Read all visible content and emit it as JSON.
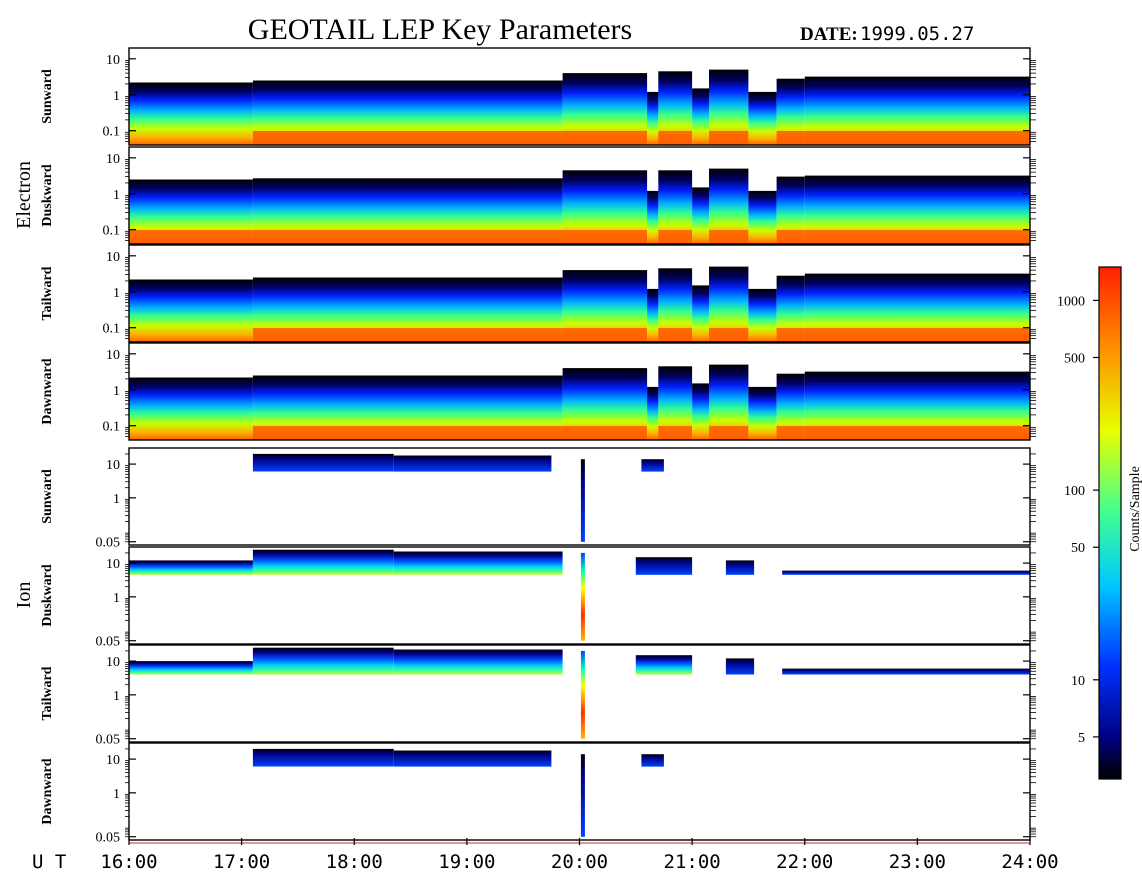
{
  "title": "GEOTAIL LEP Key Parameters",
  "date_label": "DATE:",
  "date_value": "1999.05.27",
  "x_axis": {
    "label": "U T",
    "ticks": [
      "16:00",
      "17:00",
      "18:00",
      "19:00",
      "20:00",
      "21:00",
      "22:00",
      "23:00",
      "24:00"
    ]
  },
  "groups": [
    {
      "name": "Electron",
      "panels": [
        "Sunward",
        "Duskward",
        "Tailward",
        "Dawnward"
      ]
    },
    {
      "name": "Ion",
      "panels": [
        "Sunward",
        "Duskward",
        "Tailward",
        "Dawnward"
      ]
    }
  ],
  "colorbar": {
    "label": "Counts/Sample",
    "ticks": [
      "1000",
      "500",
      "100",
      "50",
      "10",
      "5"
    ]
  },
  "chart_data": {
    "type": "heatmap",
    "title": "GEOTAIL LEP Key Parameters",
    "date": "1999.05.27",
    "x_range_ut_hours": [
      16,
      24
    ],
    "colorscale": {
      "label": "Counts/Sample",
      "scale": "log",
      "range": [
        3,
        1500
      ],
      "colors": [
        "#000000",
        "#000080",
        "#0030ff",
        "#00c8ff",
        "#40ff90",
        "#e8ff00",
        "#ff9000",
        "#ff3000"
      ]
    },
    "panels": [
      {
        "species": "Electron",
        "direction": "Sunward",
        "y_scale": "log",
        "y_ticks": [
          "10",
          "1",
          "0.1"
        ],
        "y_range": [
          0.04,
          20
        ],
        "segments": [
          {
            "t": [
              16.0,
              17.1
            ],
            "top": 2.2,
            "red_bottom": false
          },
          {
            "t": [
              17.1,
              19.85
            ],
            "top": 2.5,
            "red_bottom": true
          },
          {
            "t": [
              19.85,
              20.6
            ],
            "top": 4.0,
            "red_bottom": true
          },
          {
            "t": [
              20.6,
              20.7
            ],
            "top": 1.2,
            "red_bottom": false
          },
          {
            "t": [
              20.7,
              21.0
            ],
            "top": 4.5,
            "red_bottom": true
          },
          {
            "t": [
              21.0,
              21.15
            ],
            "top": 1.5,
            "red_bottom": false
          },
          {
            "t": [
              21.15,
              21.5
            ],
            "top": 5.0,
            "red_bottom": true
          },
          {
            "t": [
              21.5,
              21.75
            ],
            "top": 1.2,
            "red_bottom": false
          },
          {
            "t": [
              21.75,
              22.0
            ],
            "top": 2.8,
            "red_bottom": true
          },
          {
            "t": [
              22.0,
              24.0
            ],
            "top": 3.2,
            "red_bottom": true
          }
        ]
      },
      {
        "species": "Electron",
        "direction": "Duskward",
        "y_scale": "log",
        "y_ticks": [
          "10",
          "1",
          "0.1"
        ],
        "y_range": [
          0.04,
          20
        ],
        "segments": [
          {
            "t": [
              16.0,
              17.1
            ],
            "top": 2.5,
            "red_bottom": true
          },
          {
            "t": [
              17.1,
              19.85
            ],
            "top": 2.7,
            "red_bottom": true
          },
          {
            "t": [
              19.85,
              20.6
            ],
            "top": 4.5,
            "red_bottom": true
          },
          {
            "t": [
              20.6,
              20.7
            ],
            "top": 1.2,
            "red_bottom": false
          },
          {
            "t": [
              20.7,
              21.0
            ],
            "top": 4.5,
            "red_bottom": true
          },
          {
            "t": [
              21.0,
              21.15
            ],
            "top": 1.5,
            "red_bottom": false
          },
          {
            "t": [
              21.15,
              21.5
            ],
            "top": 5.0,
            "red_bottom": true
          },
          {
            "t": [
              21.5,
              21.75
            ],
            "top": 1.2,
            "red_bottom": false
          },
          {
            "t": [
              21.75,
              22.0
            ],
            "top": 3.0,
            "red_bottom": true
          },
          {
            "t": [
              22.0,
              24.0
            ],
            "top": 3.2,
            "red_bottom": true
          }
        ]
      },
      {
        "species": "Electron",
        "direction": "Tailward",
        "y_scale": "log",
        "y_ticks": [
          "10",
          "1",
          "0.1"
        ],
        "y_range": [
          0.04,
          20
        ],
        "segments": [
          {
            "t": [
              16.0,
              17.1
            ],
            "top": 2.2,
            "red_bottom": false
          },
          {
            "t": [
              17.1,
              19.85
            ],
            "top": 2.5,
            "red_bottom": true
          },
          {
            "t": [
              19.85,
              20.6
            ],
            "top": 4.0,
            "red_bottom": true
          },
          {
            "t": [
              20.6,
              20.7
            ],
            "top": 1.2,
            "red_bottom": false
          },
          {
            "t": [
              20.7,
              21.0
            ],
            "top": 4.5,
            "red_bottom": true
          },
          {
            "t": [
              21.0,
              21.15
            ],
            "top": 1.5,
            "red_bottom": false
          },
          {
            "t": [
              21.15,
              21.5
            ],
            "top": 5.0,
            "red_bottom": true
          },
          {
            "t": [
              21.5,
              21.75
            ],
            "top": 1.2,
            "red_bottom": false
          },
          {
            "t": [
              21.75,
              22.0
            ],
            "top": 2.8,
            "red_bottom": true
          },
          {
            "t": [
              22.0,
              24.0
            ],
            "top": 3.2,
            "red_bottom": true
          }
        ]
      },
      {
        "species": "Electron",
        "direction": "Dawnward",
        "y_scale": "log",
        "y_ticks": [
          "10",
          "1",
          "0.1"
        ],
        "y_range": [
          0.04,
          20
        ],
        "segments": [
          {
            "t": [
              16.0,
              17.1
            ],
            "top": 2.2,
            "red_bottom": false
          },
          {
            "t": [
              17.1,
              19.85
            ],
            "top": 2.5,
            "red_bottom": true
          },
          {
            "t": [
              19.85,
              20.6
            ],
            "top": 4.0,
            "red_bottom": true
          },
          {
            "t": [
              20.6,
              20.7
            ],
            "top": 1.2,
            "red_bottom": false
          },
          {
            "t": [
              20.7,
              21.0
            ],
            "top": 4.5,
            "red_bottom": true
          },
          {
            "t": [
              21.0,
              21.15
            ],
            "top": 1.5,
            "red_bottom": false
          },
          {
            "t": [
              21.15,
              21.5
            ],
            "top": 5.0,
            "red_bottom": true
          },
          {
            "t": [
              21.5,
              21.75
            ],
            "top": 1.2,
            "red_bottom": false
          },
          {
            "t": [
              21.75,
              22.0
            ],
            "top": 2.8,
            "red_bottom": true
          },
          {
            "t": [
              22.0,
              24.0
            ],
            "top": 3.2,
            "red_bottom": true
          }
        ]
      },
      {
        "species": "Ion",
        "direction": "Sunward",
        "y_scale": "log",
        "y_ticks": [
          "10",
          "1",
          "0.05"
        ],
        "y_range": [
          0.04,
          30
        ],
        "segments": [
          {
            "t": [
              17.1,
              18.35
            ],
            "top": 20,
            "bottom": 6.0,
            "level": "blue"
          },
          {
            "t": [
              18.35,
              19.75
            ],
            "top": 18,
            "bottom": 6.0,
            "level": "blue"
          },
          {
            "t": [
              20.55,
              20.75
            ],
            "top": 14,
            "bottom": 6.0,
            "level": "blue"
          }
        ],
        "spike": {
          "t": 20.03,
          "bottom": 0.05,
          "top": 14,
          "level": "blue"
        }
      },
      {
        "species": "Ion",
        "direction": "Duskward",
        "y_scale": "log",
        "y_ticks": [
          "10",
          "1",
          "0.05"
        ],
        "y_range": [
          0.04,
          30
        ],
        "segments": [
          {
            "t": [
              16.0,
              17.1
            ],
            "top": 12,
            "bottom": 4.5,
            "level": "green"
          },
          {
            "t": [
              17.1,
              18.35
            ],
            "top": 25,
            "bottom": 4.5,
            "level": "green"
          },
          {
            "t": [
              18.35,
              19.85
            ],
            "top": 22,
            "bottom": 4.5,
            "level": "green"
          },
          {
            "t": [
              20.5,
              21.0
            ],
            "top": 15,
            "bottom": 4.5,
            "level": "blue"
          },
          {
            "t": [
              21.3,
              21.55
            ],
            "top": 12,
            "bottom": 4.5,
            "level": "blue"
          },
          {
            "t": [
              21.8,
              24.0
            ],
            "top": 6.0,
            "bottom": 4.5,
            "level": "blue"
          }
        ],
        "spike": {
          "t": 20.03,
          "bottom": 0.05,
          "top": 20,
          "level": "red"
        }
      },
      {
        "species": "Ion",
        "direction": "Tailward",
        "y_scale": "log",
        "y_ticks": [
          "10",
          "1",
          "0.05"
        ],
        "y_range": [
          0.04,
          30
        ],
        "segments": [
          {
            "t": [
              16.0,
              17.1
            ],
            "top": 10,
            "bottom": 4.0,
            "level": "green"
          },
          {
            "t": [
              17.1,
              18.35
            ],
            "top": 25,
            "bottom": 4.0,
            "level": "green"
          },
          {
            "t": [
              18.35,
              19.85
            ],
            "top": 22,
            "bottom": 4.0,
            "level": "green"
          },
          {
            "t": [
              20.5,
              21.0
            ],
            "top": 15,
            "bottom": 4.0,
            "level": "green"
          },
          {
            "t": [
              21.3,
              21.55
            ],
            "top": 12,
            "bottom": 4.0,
            "level": "blue"
          },
          {
            "t": [
              21.8,
              24.0
            ],
            "top": 6.0,
            "bottom": 4.0,
            "level": "blue"
          }
        ],
        "spike": {
          "t": 20.03,
          "bottom": 0.05,
          "top": 20,
          "level": "red"
        }
      },
      {
        "species": "Ion",
        "direction": "Dawnward",
        "y_scale": "log",
        "y_ticks": [
          "10",
          "1",
          "0.05"
        ],
        "y_range": [
          0.04,
          30
        ],
        "segments": [
          {
            "t": [
              17.1,
              18.35
            ],
            "top": 20,
            "bottom": 6.0,
            "level": "blue"
          },
          {
            "t": [
              18.35,
              19.75
            ],
            "top": 18,
            "bottom": 6.0,
            "level": "blue"
          },
          {
            "t": [
              20.55,
              20.75
            ],
            "top": 14,
            "bottom": 6.0,
            "level": "blue"
          }
        ],
        "spike": {
          "t": 20.03,
          "bottom": 0.05,
          "top": 14,
          "level": "blue"
        }
      }
    ]
  }
}
